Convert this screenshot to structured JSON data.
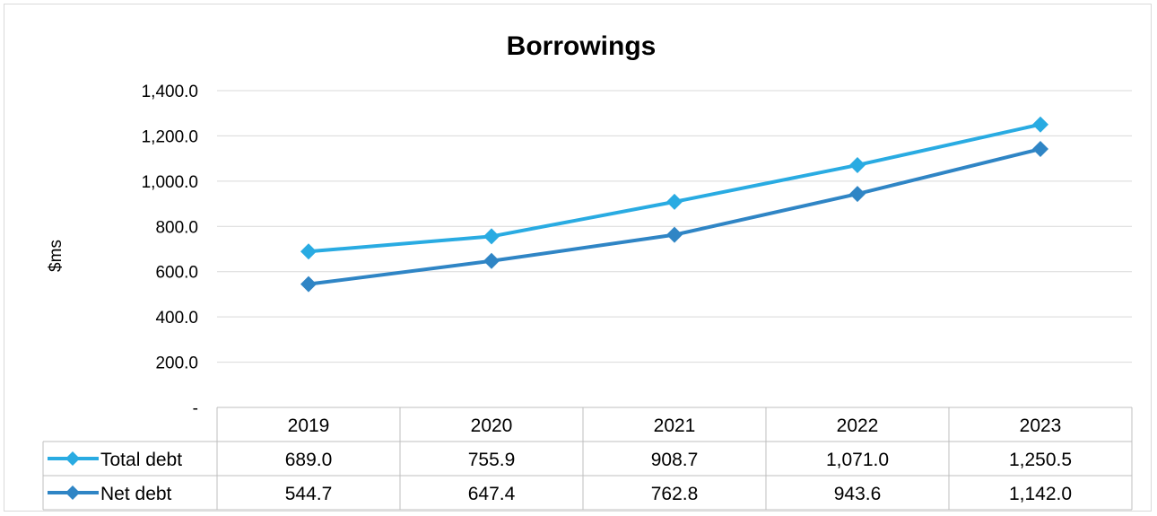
{
  "chart_data": {
    "type": "line",
    "title": "Borrowings",
    "ylabel": "$ms",
    "xlabel": "",
    "categories": [
      "2019",
      "2020",
      "2021",
      "2022",
      "2023"
    ],
    "ylim": [
      0,
      1400
    ],
    "yticks": [
      0,
      200,
      400,
      600,
      800,
      1000,
      1200,
      1400
    ],
    "ytick_labels": [
      "-",
      "200.0",
      "400.0",
      "600.0",
      "800.0",
      "1,000.0",
      "1,200.0",
      "1,400.0"
    ],
    "grid": true,
    "legend": "data-table",
    "series": [
      {
        "name": "Total debt",
        "color": "#29abe2",
        "values": [
          689.0,
          755.9,
          908.7,
          1071.0,
          1250.5
        ],
        "labels": [
          "689.0",
          "755.9",
          "908.7",
          "1,071.0",
          "1,250.5"
        ]
      },
      {
        "name": "Net debt",
        "color": "#2f85c5",
        "values": [
          544.7,
          647.4,
          762.8,
          943.6,
          1142.0
        ],
        "labels": [
          "544.7",
          "647.4",
          "762.8",
          "943.6",
          "1,142.0"
        ]
      }
    ]
  }
}
